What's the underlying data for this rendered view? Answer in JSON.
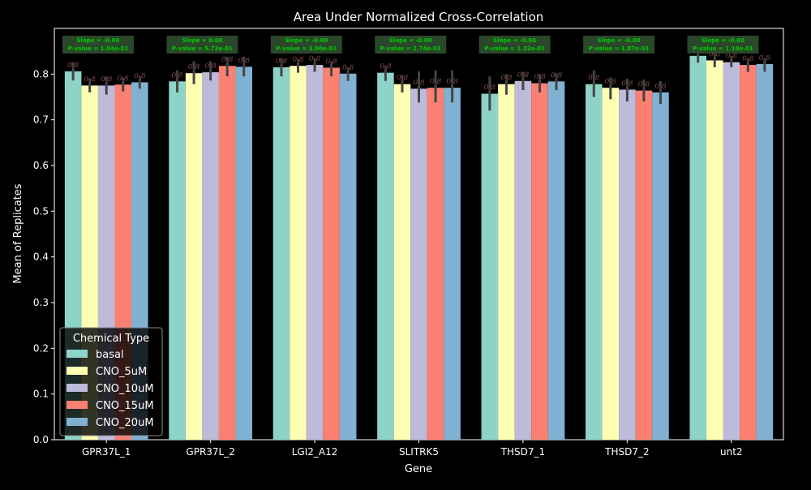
{
  "chart_data": {
    "type": "bar",
    "title": "Area Under Normalized Cross-Correlation",
    "xlabel": "Gene",
    "ylabel": "Mean of Replicates",
    "ylim": [
      0,
      0.9
    ],
    "yticks": [
      0.0,
      0.1,
      0.2,
      0.3,
      0.4,
      0.5,
      0.6,
      0.7,
      0.8
    ],
    "grid": false,
    "categories": [
      "GPR37L_1",
      "GPR37L_2",
      "LGI2_A12",
      "SLITRK5",
      "THSD7_1",
      "THSD7_2",
      "unt2"
    ],
    "legend": {
      "title": "Chemical Type",
      "position": "lower-left"
    },
    "series": [
      {
        "name": "basal",
        "color": "#8dd3c7",
        "values": [
          0.806,
          0.784,
          0.815,
          0.803,
          0.757,
          0.778,
          0.84
        ],
        "err_low": [
          0.786,
          0.76,
          0.795,
          0.785,
          0.72,
          0.75,
          0.825
        ],
        "err_high": [
          0.826,
          0.808,
          0.835,
          0.818,
          0.795,
          0.808,
          0.855
        ]
      },
      {
        "name": "CNO_5uM",
        "color": "#ffffb3",
        "values": [
          0.775,
          0.802,
          0.818,
          0.778,
          0.778,
          0.77,
          0.83
        ],
        "err_low": [
          0.76,
          0.778,
          0.803,
          0.76,
          0.755,
          0.745,
          0.815
        ],
        "err_high": [
          0.79,
          0.828,
          0.833,
          0.798,
          0.8,
          0.793,
          0.845
        ]
      },
      {
        "name": "CNO_10uM",
        "color": "#bebada",
        "values": [
          0.775,
          0.804,
          0.82,
          0.768,
          0.785,
          0.766,
          0.826
        ],
        "err_low": [
          0.755,
          0.786,
          0.805,
          0.738,
          0.765,
          0.74,
          0.815
        ],
        "err_high": [
          0.795,
          0.828,
          0.835,
          0.806,
          0.805,
          0.79,
          0.84
        ]
      },
      {
        "name": "CNO_15uM",
        "color": "#fb8072",
        "values": [
          0.777,
          0.818,
          0.814,
          0.77,
          0.78,
          0.764,
          0.82
        ],
        "err_low": [
          0.762,
          0.795,
          0.795,
          0.738,
          0.76,
          0.74,
          0.805
        ],
        "err_high": [
          0.793,
          0.838,
          0.828,
          0.808,
          0.8,
          0.788,
          0.835
        ]
      },
      {
        "name": "CNO_20uM",
        "color": "#80b1d3",
        "values": [
          0.782,
          0.816,
          0.801,
          0.77,
          0.784,
          0.76,
          0.822
        ],
        "err_low": [
          0.768,
          0.795,
          0.785,
          0.738,
          0.765,
          0.735,
          0.805
        ],
        "err_high": [
          0.796,
          0.838,
          0.815,
          0.808,
          0.802,
          0.785,
          0.835
        ]
      }
    ],
    "data_label_text": "0.8",
    "annotations": [
      {
        "slope": "Slope = -0.00",
        "pvalue": "P-value = 1.04e-01"
      },
      {
        "slope": "Slope = 0.00",
        "pvalue": "P-value = 5.72e-01"
      },
      {
        "slope": "Slope = -0.00",
        "pvalue": "P-value = 3.90e-01"
      },
      {
        "slope": "Slope = -0.00",
        "pvalue": "P-value = 2.74e-01"
      },
      {
        "slope": "Slope = -0.00",
        "pvalue": "P-value = 1.32e-01"
      },
      {
        "slope": "Slope = -0.00",
        "pvalue": "P-value = 1.87e-01"
      },
      {
        "slope": "Slope = -0.00",
        "pvalue": "P-value = 1.10e-01"
      }
    ],
    "colors": {
      "background": "#000000",
      "text": "#ffffff",
      "data_label": "#f08080",
      "annotation_box": "#2f4f2f",
      "annotation_text": "#00cc00",
      "error_bar": "#444444"
    }
  }
}
